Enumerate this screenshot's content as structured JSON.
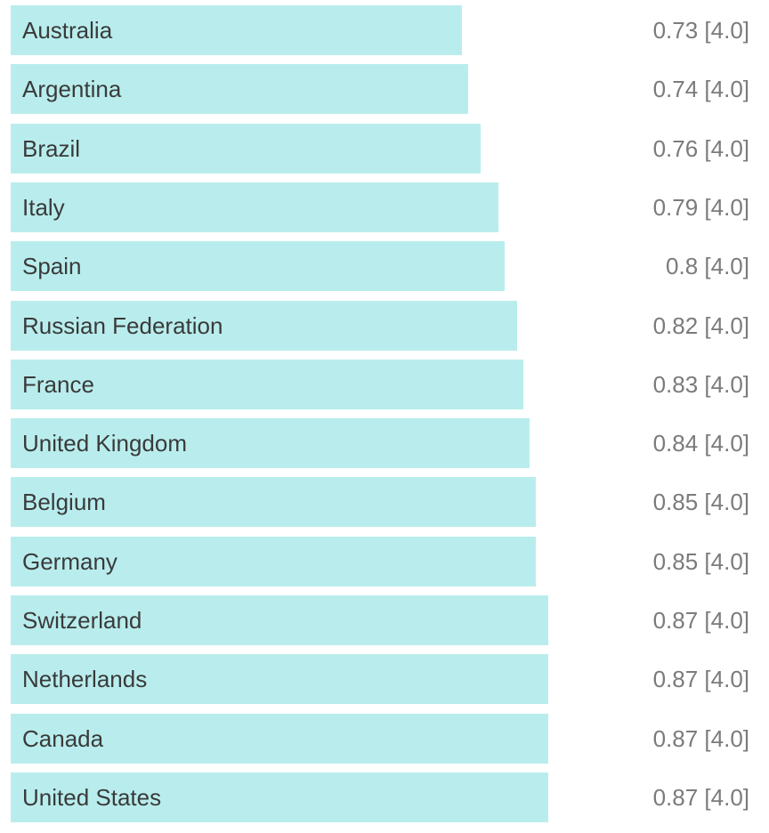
{
  "chart_data": {
    "type": "bar",
    "orientation": "horizontal",
    "categories": [
      "Australia",
      "Argentina",
      "Brazil",
      "Italy",
      "Spain",
      "Russian Federation",
      "France",
      "United Kingdom",
      "Belgium",
      "Germany",
      "Switzerland",
      "Netherlands",
      "Canada",
      "United States"
    ],
    "values": [
      0.73,
      0.74,
      0.76,
      0.79,
      0.8,
      0.82,
      0.83,
      0.84,
      0.85,
      0.85,
      0.87,
      0.87,
      0.87,
      0.87
    ],
    "value_labels": [
      "0.73 [4.0]",
      "0.74 [4.0]",
      "0.76 [4.0]",
      "0.79 [4.0]",
      "0.8 [4.0]",
      "0.82 [4.0]",
      "0.83 [4.0]",
      "0.84 [4.0]",
      "0.85 [4.0]",
      "0.85 [4.0]",
      "0.87 [4.0]",
      "0.87 [4.0]",
      "0.87 [4.0]",
      "0.87 [4.0]"
    ],
    "xlim": [
      0,
      0.87
    ],
    "grid": false,
    "bar_color": "#b9eded",
    "label_color": "#3a3a3a",
    "value_color": "#7b7b7b"
  }
}
